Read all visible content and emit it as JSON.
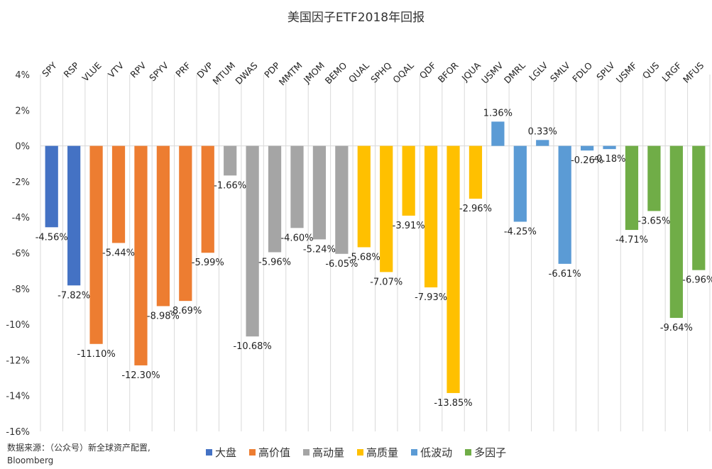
{
  "chart_data": {
    "type": "bar",
    "title": "美国因子ETF2018年回报",
    "xlabel": "",
    "ylabel": "",
    "ylim": [
      -0.16,
      0.04
    ],
    "yticks": [
      0.04,
      0.02,
      0,
      -0.02,
      -0.04,
      -0.06,
      -0.08,
      -0.1,
      -0.12,
      -0.14,
      -0.16
    ],
    "ytick_labels": [
      "4%",
      "2%",
      "0%",
      "-2%",
      "-4%",
      "-6%",
      "-8%",
      "-10%",
      "-12%",
      "-14%",
      "-16%"
    ],
    "grid": "vertical",
    "legend_position": "bottom",
    "categories": [
      "SPY",
      "RSP",
      "VLUE",
      "VTV",
      "RPV",
      "SPYV",
      "PRF",
      "DVP",
      "MTUM",
      "DWAS",
      "PDP",
      "MMTM",
      "JMOM",
      "BEMO",
      "QUAL",
      "SPHQ",
      "OQAL",
      "QDF",
      "BFOR",
      "JQUA",
      "USMV",
      "DMRL",
      "LGLV",
      "SMLV",
      "FDLO",
      "SPLV",
      "USMF",
      "QUS",
      "LRGF",
      "MFUS"
    ],
    "values": [
      -4.56,
      -7.82,
      -11.1,
      -5.44,
      -12.3,
      -8.98,
      -8.69,
      -5.99,
      -1.66,
      -10.68,
      -5.96,
      -4.6,
      -5.24,
      -6.05,
      -5.68,
      -7.07,
      -3.91,
      -7.93,
      -13.85,
      -2.96,
      1.36,
      -4.25,
      0.33,
      -6.61,
      -0.26,
      -0.18,
      -4.71,
      -3.65,
      -9.64,
      -6.96
    ],
    "value_labels": [
      "-4.56%",
      "-7.82%",
      "-11.10%",
      "-5.44%",
      "-12.30%",
      "-8.98%",
      "-8.69%",
      "-5.99%",
      "-1.66%",
      "-10.68%",
      "-5.96%",
      "-4.60%",
      "-5.24%",
      "-6.05%",
      "-5.68%",
      "-7.07%",
      "-3.91%",
      "-7.93%",
      "-13.85%",
      "-2.96%",
      "1.36%",
      "-4.25%",
      "0.33%",
      "-6.61%",
      "-0.26%",
      "-0.18%",
      "-4.71%",
      "-3.65%",
      "-9.64%",
      "-6.96%"
    ],
    "groups": [
      0,
      0,
      1,
      1,
      1,
      1,
      1,
      1,
      2,
      2,
      2,
      2,
      2,
      2,
      3,
      3,
      3,
      3,
      3,
      3,
      4,
      4,
      4,
      4,
      4,
      4,
      5,
      5,
      5,
      5
    ],
    "series": [
      {
        "name": "大盘",
        "color": "#4472C4"
      },
      {
        "name": "高价值",
        "color": "#ED7D31"
      },
      {
        "name": "高动量",
        "color": "#A5A5A5"
      },
      {
        "name": "高质量",
        "color": "#FFC000"
      },
      {
        "name": "低波动",
        "color": "#5B9BD5"
      },
      {
        "name": "多因子",
        "color": "#70AD47"
      }
    ]
  },
  "source_line1": "数据来源：（公众号）新全球资产配置,",
  "source_line2": "Bloomberg"
}
